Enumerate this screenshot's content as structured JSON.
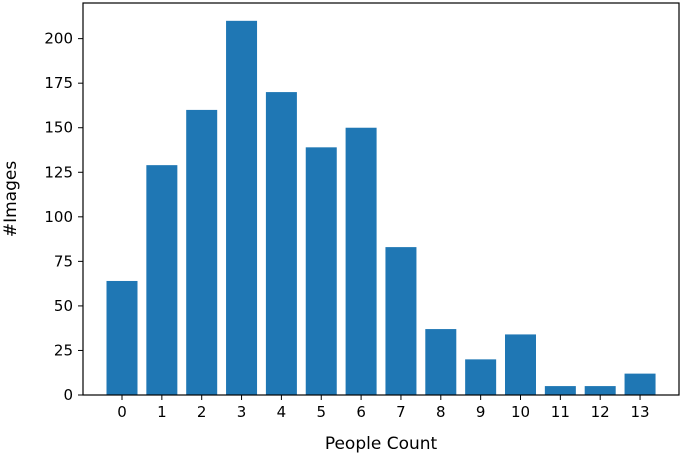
{
  "chart_data": {
    "type": "bar",
    "xlabel": "People Count",
    "ylabel": "#Images",
    "categories": [
      "0",
      "1",
      "2",
      "3",
      "4",
      "5",
      "6",
      "7",
      "8",
      "9",
      "10",
      "11",
      "12",
      "13"
    ],
    "values": [
      64,
      129,
      160,
      210,
      170,
      139,
      150,
      83,
      37,
      20,
      34,
      5,
      5,
      12
    ],
    "ylim": [
      0,
      220
    ],
    "yticks": [
      0,
      25,
      50,
      75,
      100,
      125,
      150,
      175,
      200
    ],
    "bar_color": "#1f77b4",
    "grid": false
  }
}
